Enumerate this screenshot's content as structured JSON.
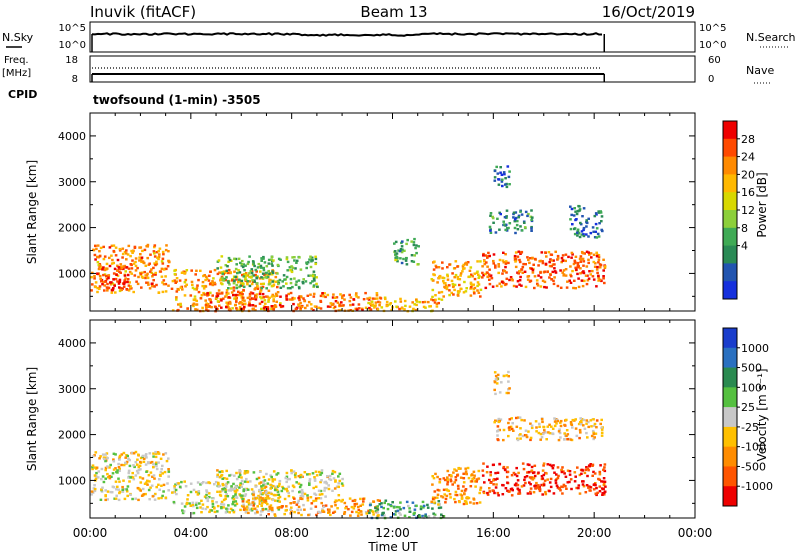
{
  "header": {
    "station": "Inuvik (fitACF)",
    "beam": "Beam 13",
    "date": "16/Oct/2019"
  },
  "sky_panel": {
    "left_label": "N.Sky",
    "right_label": "N.Search",
    "tick_top": "10^5",
    "tick_bottom": "10^0",
    "rtick_top": "10^5",
    "rtick_bottom": "10^0"
  },
  "freq_panel": {
    "label_line1": "Freq.",
    "label_line2": "[MHz]",
    "ltick_top": "18",
    "ltick_bottom": "8",
    "right_label": "Nave",
    "rtick_top": "60",
    "rtick_bottom": "0"
  },
  "cpid": {
    "label": "CPID",
    "program": "twofsound (1-min) -3505"
  },
  "chart_data": [
    {
      "type": "heatmap",
      "name": "Power",
      "ylabel": "Slant Range [km]",
      "xlabel": "Time UT",
      "x_ticks": [
        "00:00",
        "04:00",
        "08:00",
        "12:00",
        "16:00",
        "20:00",
        "00:00"
      ],
      "y_ticks": [
        1000,
        2000,
        3000,
        4000
      ],
      "ylim": [
        180,
        4500
      ],
      "xlim_hours": [
        0,
        24
      ],
      "data_end_hour": 20.4,
      "colorbar": {
        "label": "Power [dB]",
        "ticks": [
          "28",
          "24",
          "20",
          "16",
          "12",
          "8",
          "4"
        ],
        "colors": [
          "#ee0000",
          "#ff4a00",
          "#ff8a00",
          "#ffb800",
          "#d8d800",
          "#8ccf3a",
          "#3faa55",
          "#2a8a55",
          "#2255b0",
          "#1530dd"
        ]
      },
      "regions": [
        {
          "t0": 0.0,
          "t1": 3.1,
          "r0": 600,
          "r1": 1650,
          "level": 0.75
        },
        {
          "t0": 0.2,
          "t1": 1.5,
          "r0": 650,
          "r1": 1200,
          "level": 0.92
        },
        {
          "t0": 3.2,
          "t1": 7.5,
          "r0": 200,
          "r1": 1100,
          "level": 0.72
        },
        {
          "t0": 5.0,
          "t1": 9.0,
          "r0": 700,
          "r1": 1400,
          "level": 0.38
        },
        {
          "t0": 4.5,
          "t1": 8.5,
          "r0": 250,
          "r1": 600,
          "level": 0.85
        },
        {
          "t0": 8.0,
          "t1": 11.5,
          "r0": 200,
          "r1": 600,
          "level": 0.78
        },
        {
          "t0": 11.0,
          "t1": 14.0,
          "r0": 200,
          "r1": 500,
          "level": 0.7
        },
        {
          "t0": 12.0,
          "t1": 13.0,
          "r0": 1200,
          "r1": 1800,
          "level": 0.35
        },
        {
          "t0": 13.5,
          "t1": 15.5,
          "r0": 500,
          "r1": 1300,
          "level": 0.7
        },
        {
          "t0": 15.5,
          "t1": 20.4,
          "r0": 700,
          "r1": 1500,
          "level": 0.82
        },
        {
          "t0": 15.8,
          "t1": 17.5,
          "r0": 1900,
          "r1": 2400,
          "level": 0.25
        },
        {
          "t0": 19.0,
          "t1": 20.3,
          "r0": 1800,
          "r1": 2500,
          "level": 0.22
        },
        {
          "t0": 16.0,
          "t1": 16.6,
          "r0": 2900,
          "r1": 3400,
          "level": 0.2
        }
      ]
    },
    {
      "type": "heatmap",
      "name": "Velocity",
      "ylabel": "Slant Range [km]",
      "xlabel": "Time UT",
      "x_ticks": [
        "00:00",
        "04:00",
        "08:00",
        "12:00",
        "16:00",
        "20:00",
        "00:00"
      ],
      "y_ticks": [
        1000,
        2000,
        3000,
        4000
      ],
      "ylim": [
        180,
        4500
      ],
      "xlim_hours": [
        0,
        24
      ],
      "data_end_hour": 20.4,
      "colorbar": {
        "label": "Velocity [m s⁻¹]",
        "ticks": [
          "1000",
          "500",
          "100",
          "25",
          "-25",
          "-100",
          "-500",
          "-1000"
        ],
        "colors": [
          "#1a3dcc",
          "#2a70c0",
          "#2a8a50",
          "#55c040",
          "#c8c8c8",
          "#ffc000",
          "#ff8c00",
          "#ff5500",
          "#ee0000"
        ]
      },
      "regions": [
        {
          "t0": 0.0,
          "t1": 3.1,
          "r0": 600,
          "r1": 1650,
          "level": 0.45
        },
        {
          "t0": 3.2,
          "t1": 7.5,
          "r0": 300,
          "r1": 1000,
          "level": 0.5
        },
        {
          "t0": 5.0,
          "t1": 10.0,
          "r0": 650,
          "r1": 1250,
          "level": 0.48
        },
        {
          "t0": 6.0,
          "t1": 11.5,
          "r0": 250,
          "r1": 650,
          "level": 0.32
        },
        {
          "t0": 11.0,
          "t1": 14.0,
          "r0": 200,
          "r1": 600,
          "level": 0.68
        },
        {
          "t0": 13.5,
          "t1": 15.5,
          "r0": 500,
          "r1": 1300,
          "level": 0.28
        },
        {
          "t0": 15.5,
          "t1": 20.4,
          "r0": 700,
          "r1": 1400,
          "level": 0.1
        },
        {
          "t0": 16.0,
          "t1": 20.3,
          "r0": 1900,
          "r1": 2400,
          "level": 0.36
        },
        {
          "t0": 16.0,
          "t1": 16.6,
          "r0": 2900,
          "r1": 3400,
          "level": 0.4
        }
      ]
    }
  ]
}
